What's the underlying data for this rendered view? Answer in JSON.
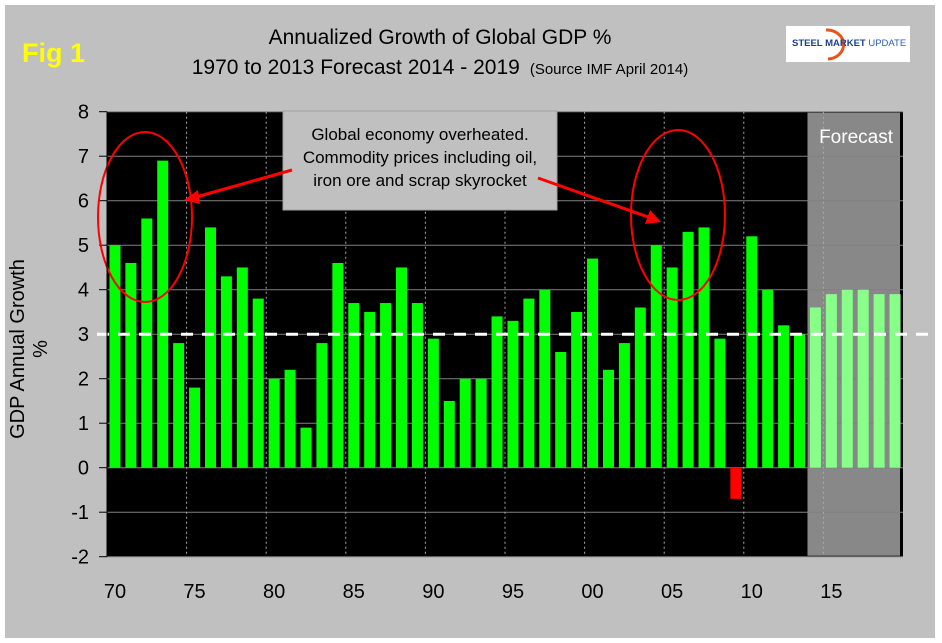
{
  "figure_label": "Fig 1",
  "logo_text": "STEEL MARKET UPDATE",
  "chart_data": {
    "type": "bar",
    "title": "Annualized Growth of Global GDP %",
    "subtitle": "1970 to 2013 Forecast 2014 - 2019",
    "source_note": "(Source IMF April 2014)",
    "ylabel": "GDP Annual Growth %",
    "xlabel": "",
    "ylim": [
      -2,
      8
    ],
    "yticks": [
      -2,
      -1,
      0,
      1,
      2,
      3,
      4,
      5,
      6,
      7,
      8
    ],
    "xtick_labels": [
      "70",
      "75",
      "80",
      "85",
      "90",
      "95",
      "00",
      "05",
      "10",
      "15"
    ],
    "grid": "horizontal solid, vertical dotted every 5 years",
    "categories": [
      1970,
      1971,
      1972,
      1973,
      1974,
      1975,
      1976,
      1977,
      1978,
      1979,
      1980,
      1981,
      1982,
      1983,
      1984,
      1985,
      1986,
      1987,
      1988,
      1989,
      1990,
      1991,
      1992,
      1993,
      1994,
      1995,
      1996,
      1997,
      1998,
      1999,
      2000,
      2001,
      2002,
      2003,
      2004,
      2005,
      2006,
      2007,
      2008,
      2009,
      2010,
      2011,
      2012,
      2013,
      2014,
      2015,
      2016,
      2017,
      2018,
      2019
    ],
    "values": [
      5.0,
      4.6,
      5.6,
      6.9,
      2.8,
      1.8,
      5.4,
      4.3,
      4.5,
      3.8,
      2.0,
      2.2,
      0.9,
      2.8,
      4.6,
      3.7,
      3.5,
      3.7,
      4.5,
      3.7,
      2.9,
      1.5,
      2.0,
      2.0,
      3.4,
      3.3,
      3.8,
      4.0,
      2.6,
      3.5,
      4.7,
      2.2,
      2.8,
      3.6,
      5.0,
      4.5,
      5.3,
      5.4,
      2.9,
      -0.7,
      5.2,
      4.0,
      3.2,
      3.0,
      3.6,
      3.9,
      4.0,
      4.0,
      3.9,
      3.9
    ],
    "forecast_from": 2014,
    "forecast_label": "Forecast",
    "reference_line": 3,
    "annotation": [
      "Global economy overheated.",
      "Commodity prices including oil,",
      "iron ore and scrap skyrocket"
    ],
    "colors": {
      "actual": "#00ff00",
      "forecast": "#88ff88",
      "negative": "#ff0000",
      "plot_background": "#000000",
      "forecast_background": "#888888",
      "reference_line": "#ffffff",
      "highlight_ellipse": "#ff0000"
    }
  }
}
